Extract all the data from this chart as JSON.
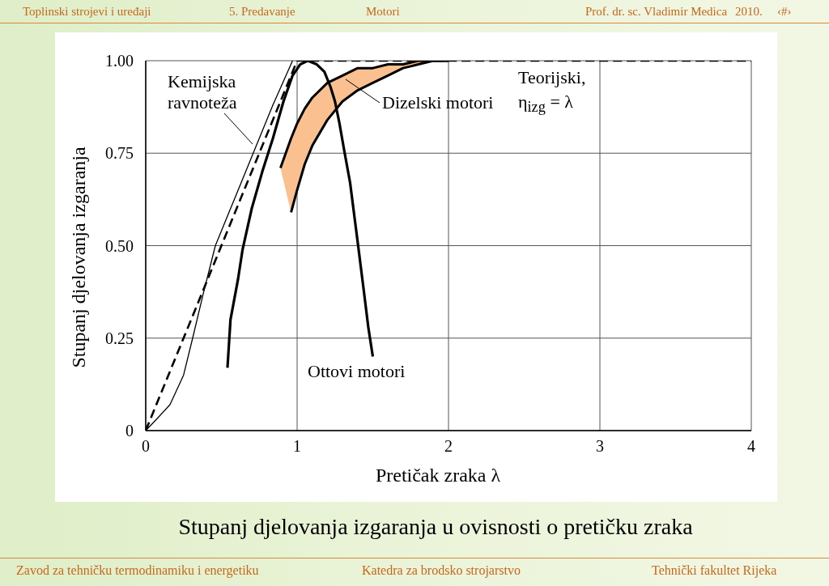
{
  "chart_data": {
    "type": "line",
    "title": "Stupanj djelovanja izgaranja u ovisnosti o pretičku zraka",
    "xlabel": "Pretičak zraka λ",
    "ylabel": "Stupanj djelovanja izgaranja",
    "annotations": [
      "Toplinski strojevi i uređaji",
      "5. Predavanje",
      "Motori",
      "Prof. dr. sc. Vladimir Medica",
      "2010.",
      "‹#›",
      "Zavod za tehničku termodinamiku i energetiku",
      "Katedra za brodsko strojarstvo",
      "Tehnički fakultet Rijeka"
    ],
    "xlim": [
      0,
      4
    ],
    "xticks": [
      0,
      1,
      2,
      3,
      4
    ],
    "ylim": [
      0,
      1
    ],
    "yticks": [
      0,
      0.25,
      {
        "value": 0.5,
        "label": "0.50"
      },
      0.75,
      {
        "value": 1,
        "label": "1.00"
      }
    ],
    "grid": true,
    "marker": "none",
    "series": [
      {
        "name": "Dizelski motori",
        "color": "#000000",
        "x": [
          0.89,
          0.96,
          1.0,
          1.05,
          1.1,
          1.2,
          1.3,
          1.4,
          1.5,
          1.6,
          1.7,
          1.8,
          1.9,
          2.0
        ],
        "values": [
          0.71,
          0.79,
          0.83,
          0.87,
          0.9,
          0.94,
          0.96,
          0.98,
          0.98,
          0.99,
          0.99,
          1,
          1,
          1
        ],
        "lower": [
          0.71,
          0.59,
          0.65,
          0.72,
          0.77,
          0.84,
          0.89,
          0.92,
          0.94,
          0.96,
          0.98,
          0.99,
          1,
          1
        ],
        "upper": [
          0.71,
          0.79,
          0.83,
          0.87,
          0.9,
          0.94,
          0.96,
          0.98,
          0.98,
          0.99,
          0.99,
          1,
          1,
          1
        ]
      },
      {
        "color": "#000000",
        "x": [
          0.96,
          1.0,
          1.05,
          1.1,
          1.2,
          1.3,
          1.4,
          1.5,
          1.6,
          1.7,
          1.8,
          1.9,
          2.0
        ],
        "values": [
          0.59,
          0.65,
          0.72,
          0.77,
          0.84,
          0.89,
          0.92,
          0.94,
          0.96,
          0.98,
          0.99,
          1,
          1
        ]
      },
      {
        "name": "Kemijska ravnoteža",
        "color": "#000000",
        "x": [
          0,
          0.07,
          0.16,
          0.25,
          0.31,
          0.38,
          0.46,
          0.58,
          0.71,
          0.84,
          0.97
        ],
        "values": [
          0,
          0.03,
          0.07,
          0.15,
          0.25,
          0.37,
          0.5,
          0.62,
          0.75,
          0.88,
          1
        ]
      },
      {
        "name": "Teorijski, η$_{izg}$ = λ",
        "color": "#000000",
        "line_style": "dashed",
        "x": [
          0,
          1,
          4
        ],
        "values": [
          0,
          1,
          1
        ]
      },
      {
        "name": "Ottovi motori",
        "color": "#000000",
        "x": [
          0.54,
          0.56,
          0.61,
          0.64,
          0.7,
          0.77,
          0.84,
          0.91,
          0.97,
          1.02,
          1.07,
          1.13,
          1.18,
          1.22,
          1.25,
          1.28,
          1.31,
          1.35,
          1.4,
          1.44,
          1.47,
          1.5
        ],
        "values": [
          0.17,
          0.3,
          0.41,
          0.49,
          0.6,
          0.7,
          0.79,
          0.89,
          0.96,
          0.99,
          1,
          0.99,
          0.97,
          0.93,
          0.89,
          0.83,
          0.76,
          0.67,
          0.51,
          0.38,
          0.28,
          0.2
        ]
      }
    ]
  }
}
